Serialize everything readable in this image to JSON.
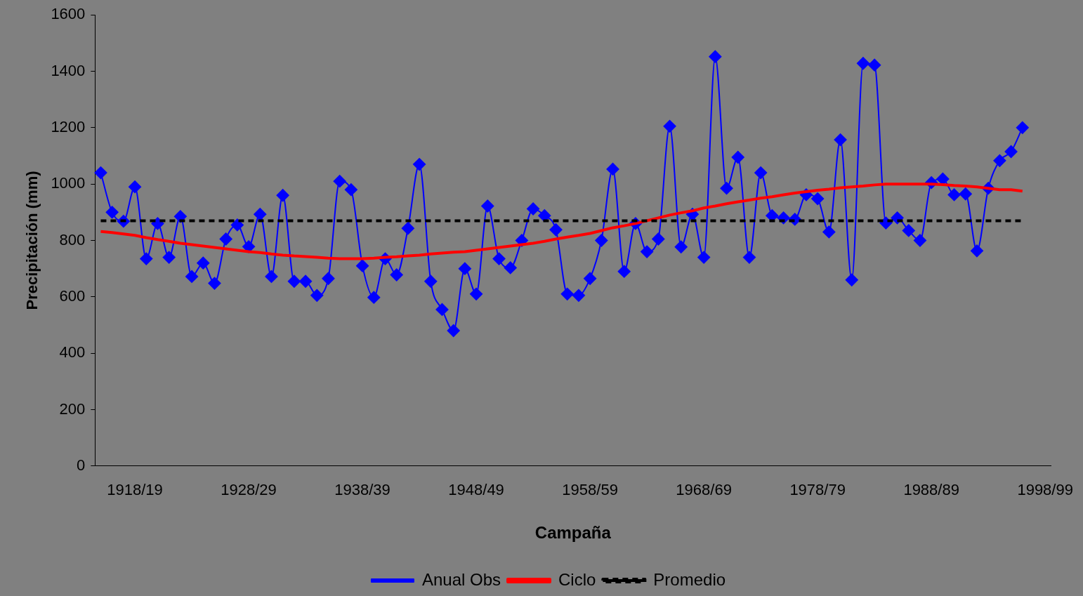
{
  "chart_data": {
    "type": "line",
    "xlabel": "Campaña",
    "ylabel": "Precipitación (mm)",
    "categories": [
      null,
      null,
      null,
      "1918/19",
      null,
      null,
      null,
      null,
      null,
      null,
      null,
      null,
      null,
      "1928/29",
      null,
      null,
      null,
      null,
      null,
      null,
      null,
      null,
      null,
      "1938/39",
      null,
      null,
      null,
      null,
      null,
      null,
      null,
      null,
      null,
      "1948/49",
      null,
      null,
      null,
      null,
      null,
      null,
      null,
      null,
      null,
      "1958/59",
      null,
      null,
      null,
      null,
      null,
      null,
      null,
      null,
      null,
      "1968/69",
      null,
      null,
      null,
      null,
      null,
      null,
      null,
      null,
      null,
      "1978/79",
      null,
      null,
      null,
      null,
      null,
      null,
      null,
      null,
      null,
      "1988/89",
      null,
      null,
      null,
      null,
      null,
      null,
      null,
      null,
      null,
      "1998/99"
    ],
    "series": [
      {
        "name": "Anual Obs",
        "color": "#0000ff",
        "marker": "diamond",
        "line_style": "solid",
        "values": [
          1040,
          900,
          868,
          990,
          735,
          860,
          740,
          885,
          672,
          720,
          648,
          805,
          855,
          778,
          893,
          672,
          960,
          655,
          655,
          605,
          665,
          1010,
          980,
          710,
          598,
          735,
          678,
          843,
          1070,
          655,
          555,
          480,
          700,
          610,
          922,
          735,
          703,
          800,
          912,
          888,
          838,
          610,
          605,
          665,
          800,
          1053,
          690,
          860,
          760,
          805,
          1205,
          777,
          893,
          740,
          1452,
          985,
          1095,
          740,
          1040,
          888,
          880,
          875,
          962,
          948,
          830,
          1157,
          660,
          1428,
          1422,
          862,
          880,
          835,
          800,
          1005,
          1018,
          962,
          965,
          763,
          985,
          1083,
          1115,
          1200,
          null,
          null
        ]
      },
      {
        "name": "Ciclo",
        "color": "#ff0000",
        "marker": "none",
        "line_style": "solid",
        "values": [
          832,
          828,
          823,
          818,
          810,
          803,
          797,
          790,
          785,
          780,
          775,
          770,
          765,
          760,
          757,
          752,
          748,
          745,
          743,
          740,
          737,
          735,
          735,
          735,
          737,
          740,
          742,
          745,
          748,
          752,
          755,
          758,
          760,
          765,
          770,
          775,
          780,
          785,
          790,
          797,
          805,
          812,
          818,
          825,
          835,
          845,
          852,
          860,
          870,
          880,
          890,
          898,
          905,
          915,
          922,
          930,
          937,
          943,
          950,
          955,
          962,
          968,
          973,
          978,
          982,
          987,
          990,
          993,
          997,
          1000,
          1000,
          1000,
          1000,
          1000,
          998,
          995,
          993,
          990,
          985,
          980,
          980,
          975,
          null,
          null
        ]
      },
      {
        "name": "Promedio",
        "color": "#000000",
        "marker": "none",
        "line_style": "dashed",
        "values": [
          870,
          870,
          870,
          870,
          870,
          870,
          870,
          870,
          870,
          870,
          870,
          870,
          870,
          870,
          870,
          870,
          870,
          870,
          870,
          870,
          870,
          870,
          870,
          870,
          870,
          870,
          870,
          870,
          870,
          870,
          870,
          870,
          870,
          870,
          870,
          870,
          870,
          870,
          870,
          870,
          870,
          870,
          870,
          870,
          870,
          870,
          870,
          870,
          870,
          870,
          870,
          870,
          870,
          870,
          870,
          870,
          870,
          870,
          870,
          870,
          870,
          870,
          870,
          870,
          870,
          870,
          870,
          870,
          870,
          870,
          870,
          870,
          870,
          870,
          870,
          870,
          870,
          870,
          870,
          870,
          870,
          870,
          null,
          null
        ]
      }
    ],
    "ylim": [
      0,
      1600
    ],
    "yticks": [
      0,
      200,
      400,
      600,
      800,
      1000,
      1200,
      1400,
      1600
    ],
    "grid": false,
    "legend": "bottom"
  }
}
